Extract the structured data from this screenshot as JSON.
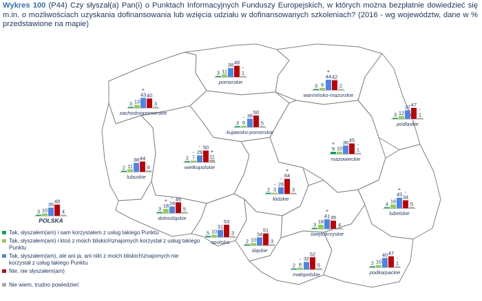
{
  "caption": {
    "label": "Wykres 100",
    "text": "(P44) Czy słyszał(a) Pan(i) o Punktach Informacyjnych Funduszy Europejskich, w których można bezpłatnie dowiedzieć się m.in. o możliwościach uzyskania dofinansowania lub wzięcia udziału w dofinansowanych szkoleniach? (2016 - wg województw, dane w % przedstawione na mapie)"
  },
  "colors": {
    "s1": "#00a651",
    "s2": "#92d050",
    "s3": "#4a86e8",
    "s4": "#c00000",
    "s5": "#a6a6a6",
    "map_fill": "#ffffff",
    "map_border": "#7f7f7f",
    "text": "#1f3864"
  },
  "legend": [
    {
      "label": "Tak, słyszałem(am) i sam korzystałem z usług takiego Punktu",
      "color_key": "s1"
    },
    {
      "label": "Tak, słyszałem(am) i ktoś z moich bliskich\\znajomych korzystał z usług takiego Punktu",
      "color_key": "s2"
    },
    {
      "label": "Tak, słyszałem(am), ale ani ja, ani nikt z moich bliskich\\znajomych nie korzystał z usług takiego Punktu",
      "color_key": "s3"
    },
    {
      "label": "Nie, nie słyszałem(am)",
      "color_key": "s4"
    },
    {
      "label": "Nie wiem, trudno powiedzieć",
      "color_key": "s5"
    }
  ],
  "chart_data": {
    "type": "bar",
    "series": [
      "Tak, słyszałem(am) i sam korzystałem z usług takiego Punktu",
      "Tak, słyszałem(am) i ktoś z moich bliskich\\znajomych korzystał z usług takiego Punktu",
      "Tak, słyszałem(am), ale ani ja, ani nikt z moich bliskich\\znajomych nie korzystał z usług takiego Punktu",
      "Nie, nie słyszałem(am)",
      "Nie wiem, trudno powiedzieć"
    ],
    "regions": [
      {
        "name": "pomorskie",
        "values": [
          3,
          11,
          38,
          48,
          1
        ],
        "marks": [
          "",
          "",
          "",
          "",
          "-"
        ]
      },
      {
        "name": "warmińsko-mazurskie",
        "values": [
          3,
          9,
          44,
          42,
          2
        ],
        "marks": [
          "",
          "",
          "+",
          "",
          ""
        ]
      },
      {
        "name": "zachodniopomorskie",
        "values": [
          3,
          13,
          43,
          40,
          3
        ],
        "marks": [
          "",
          "",
          "+",
          "",
          ""
        ]
      },
      {
        "name": "kujawsko-pomorskie",
        "values": [
          3,
          6,
          36,
          50,
          5
        ],
        "marks": [
          "",
          "-",
          "",
          "",
          ""
        ]
      },
      {
        "name": "podlaskie",
        "values": [
          3,
          12,
          37,
          47,
          1
        ],
        "marks": [
          "",
          "",
          "",
          "",
          "-"
        ]
      },
      {
        "name": "mazowieckie",
        "values": [
          9,
          10,
          36,
          45,
          1
        ],
        "marks": [
          "+",
          "",
          "",
          "",
          "-"
        ]
      },
      {
        "name": "lubuskie",
        "values": [
          2,
          11,
          38,
          44,
          6
        ],
        "marks": [
          "",
          "",
          "",
          "",
          ""
        ]
      },
      {
        "name": "wielkopolskie",
        "values": [
          2,
          7,
          29,
          50,
          11
        ],
        "marks": [
          "",
          "-",
          "-",
          "",
          "+"
        ]
      },
      {
        "name": "łódzkie",
        "values": [
          2,
          3,
          28,
          64,
          3
        ],
        "marks": [
          "",
          "-",
          "-",
          "+",
          ""
        ]
      },
      {
        "name": "dolnośląskie",
        "values": [
          3,
          18,
          28,
          46,
          5
        ],
        "marks": [
          "",
          "+",
          "-",
          "",
          ""
        ]
      },
      {
        "name": "lubelskie",
        "values": [
          4,
          16,
          45,
          34,
          5
        ],
        "marks": [
          "",
          "",
          "+",
          "-",
          ""
        ]
      },
      {
        "name": "POLSKA",
        "values": [
          3,
          10,
          35,
          48,
          4
        ],
        "marks": [
          "",
          "",
          "",
          "",
          ""
        ]
      },
      {
        "name": "opolskie",
        "values": [
          5,
          10,
          31,
          53,
          3
        ],
        "marks": [
          "",
          "",
          "",
          "",
          ""
        ]
      },
      {
        "name": "świętokrzyskie",
        "values": [
          3,
          18,
          41,
          35,
          4
        ],
        "marks": [
          "",
          "",
          "+",
          "",
          ""
        ]
      },
      {
        "name": "śląskie",
        "values": [
          2,
          10,
          34,
          51,
          3
        ],
        "marks": [
          "",
          "",
          "",
          "",
          ""
        ]
      },
      {
        "name": "małopolskie",
        "values": [
          2,
          8,
          32,
          52,
          5
        ],
        "marks": [
          "",
          "-",
          "",
          "",
          ""
        ]
      },
      {
        "name": "podkarpackie",
        "values": [
          2,
          10,
          40,
          47,
          1
        ],
        "marks": [
          "",
          "",
          "",
          "",
          "-"
        ]
      }
    ]
  }
}
